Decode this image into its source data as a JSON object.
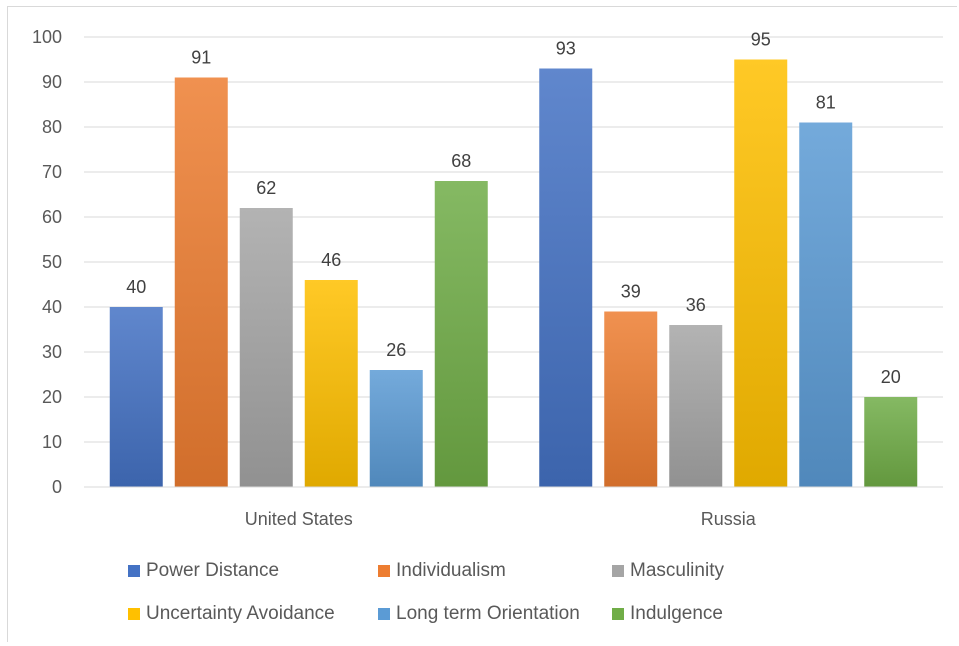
{
  "chart_data": {
    "type": "bar",
    "title": "",
    "xlabel": "",
    "ylabel": "",
    "ylim": [
      0,
      100
    ],
    "yticks": [
      0,
      10,
      20,
      30,
      40,
      50,
      60,
      70,
      80,
      90,
      100
    ],
    "grid": true,
    "legend_position": "bottom",
    "categories": [
      "United States",
      "Russia"
    ],
    "series": [
      {
        "name": "Power Distance",
        "color": "#4472c4",
        "values": [
          40,
          93
        ]
      },
      {
        "name": "Individualism",
        "color": "#ed7d31",
        "values": [
          91,
          39
        ]
      },
      {
        "name": "Masculinity",
        "color": "#a5a5a5",
        "values": [
          62,
          36
        ]
      },
      {
        "name": "Uncertainty Avoidance",
        "color": "#ffc000",
        "values": [
          46,
          95
        ]
      },
      {
        "name": "Long term Orientation",
        "color": "#5b9bd5",
        "values": [
          26,
          81
        ]
      },
      {
        "name": "Indulgence",
        "color": "#70ad47",
        "values": [
          68,
          20
        ]
      }
    ]
  }
}
